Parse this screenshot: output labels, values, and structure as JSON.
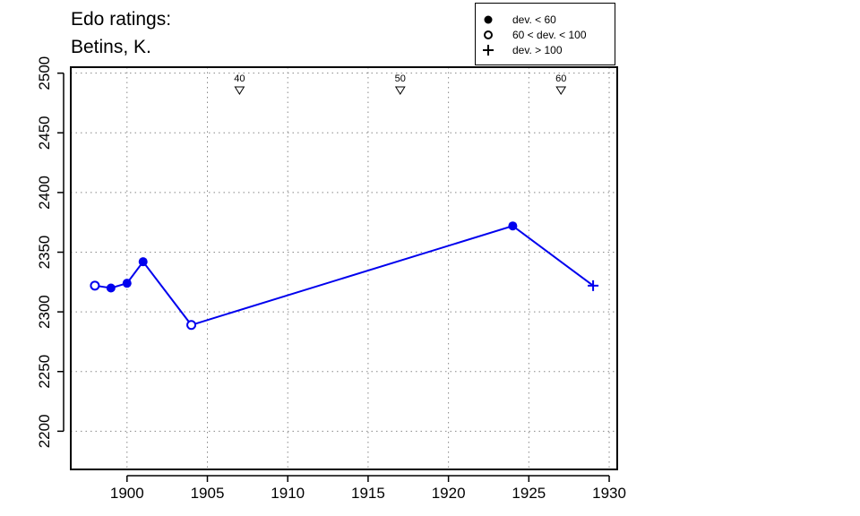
{
  "title": [
    "Edo ratings:",
    "Betins, K."
  ],
  "legend": [
    {
      "label": "dev. < 60",
      "symbol": "filled-circle"
    },
    {
      "label": "60 < dev. < 100",
      "symbol": "open-circle"
    },
    {
      "label": "dev. > 100",
      "symbol": "plus"
    }
  ],
  "colors": {
    "series": "#0000EE",
    "axis": "#000000",
    "grid": "#888888"
  },
  "chart_data": {
    "type": "line",
    "title": "Edo ratings: Betins, K.",
    "xlabel": "",
    "ylabel": "",
    "xlim": [
      1896.5,
      1930.5
    ],
    "ylim": [
      2168,
      2505
    ],
    "xticks": [
      1900,
      1905,
      1910,
      1915,
      1920,
      1925,
      1930
    ],
    "yticks": [
      2200,
      2250,
      2300,
      2350,
      2400,
      2450,
      2500
    ],
    "grid": true,
    "legend_position": "top-right",
    "series": [
      {
        "points": [
          {
            "x": 1898,
            "y": 2322,
            "marker": "open-circle"
          },
          {
            "x": 1899,
            "y": 2320,
            "marker": "filled-circle"
          },
          {
            "x": 1900,
            "y": 2324,
            "marker": "filled-circle"
          },
          {
            "x": 1901,
            "y": 2342,
            "marker": "filled-circle"
          },
          {
            "x": 1904,
            "y": 2289,
            "marker": "open-circle"
          },
          {
            "x": 1924,
            "y": 2372,
            "marker": "filled-circle"
          },
          {
            "x": 1929,
            "y": 2322,
            "marker": "plus"
          }
        ]
      }
    ],
    "annotations": [
      {
        "x": 1907,
        "label": "40"
      },
      {
        "x": 1917,
        "label": "50"
      },
      {
        "x": 1927,
        "label": "60"
      }
    ]
  }
}
